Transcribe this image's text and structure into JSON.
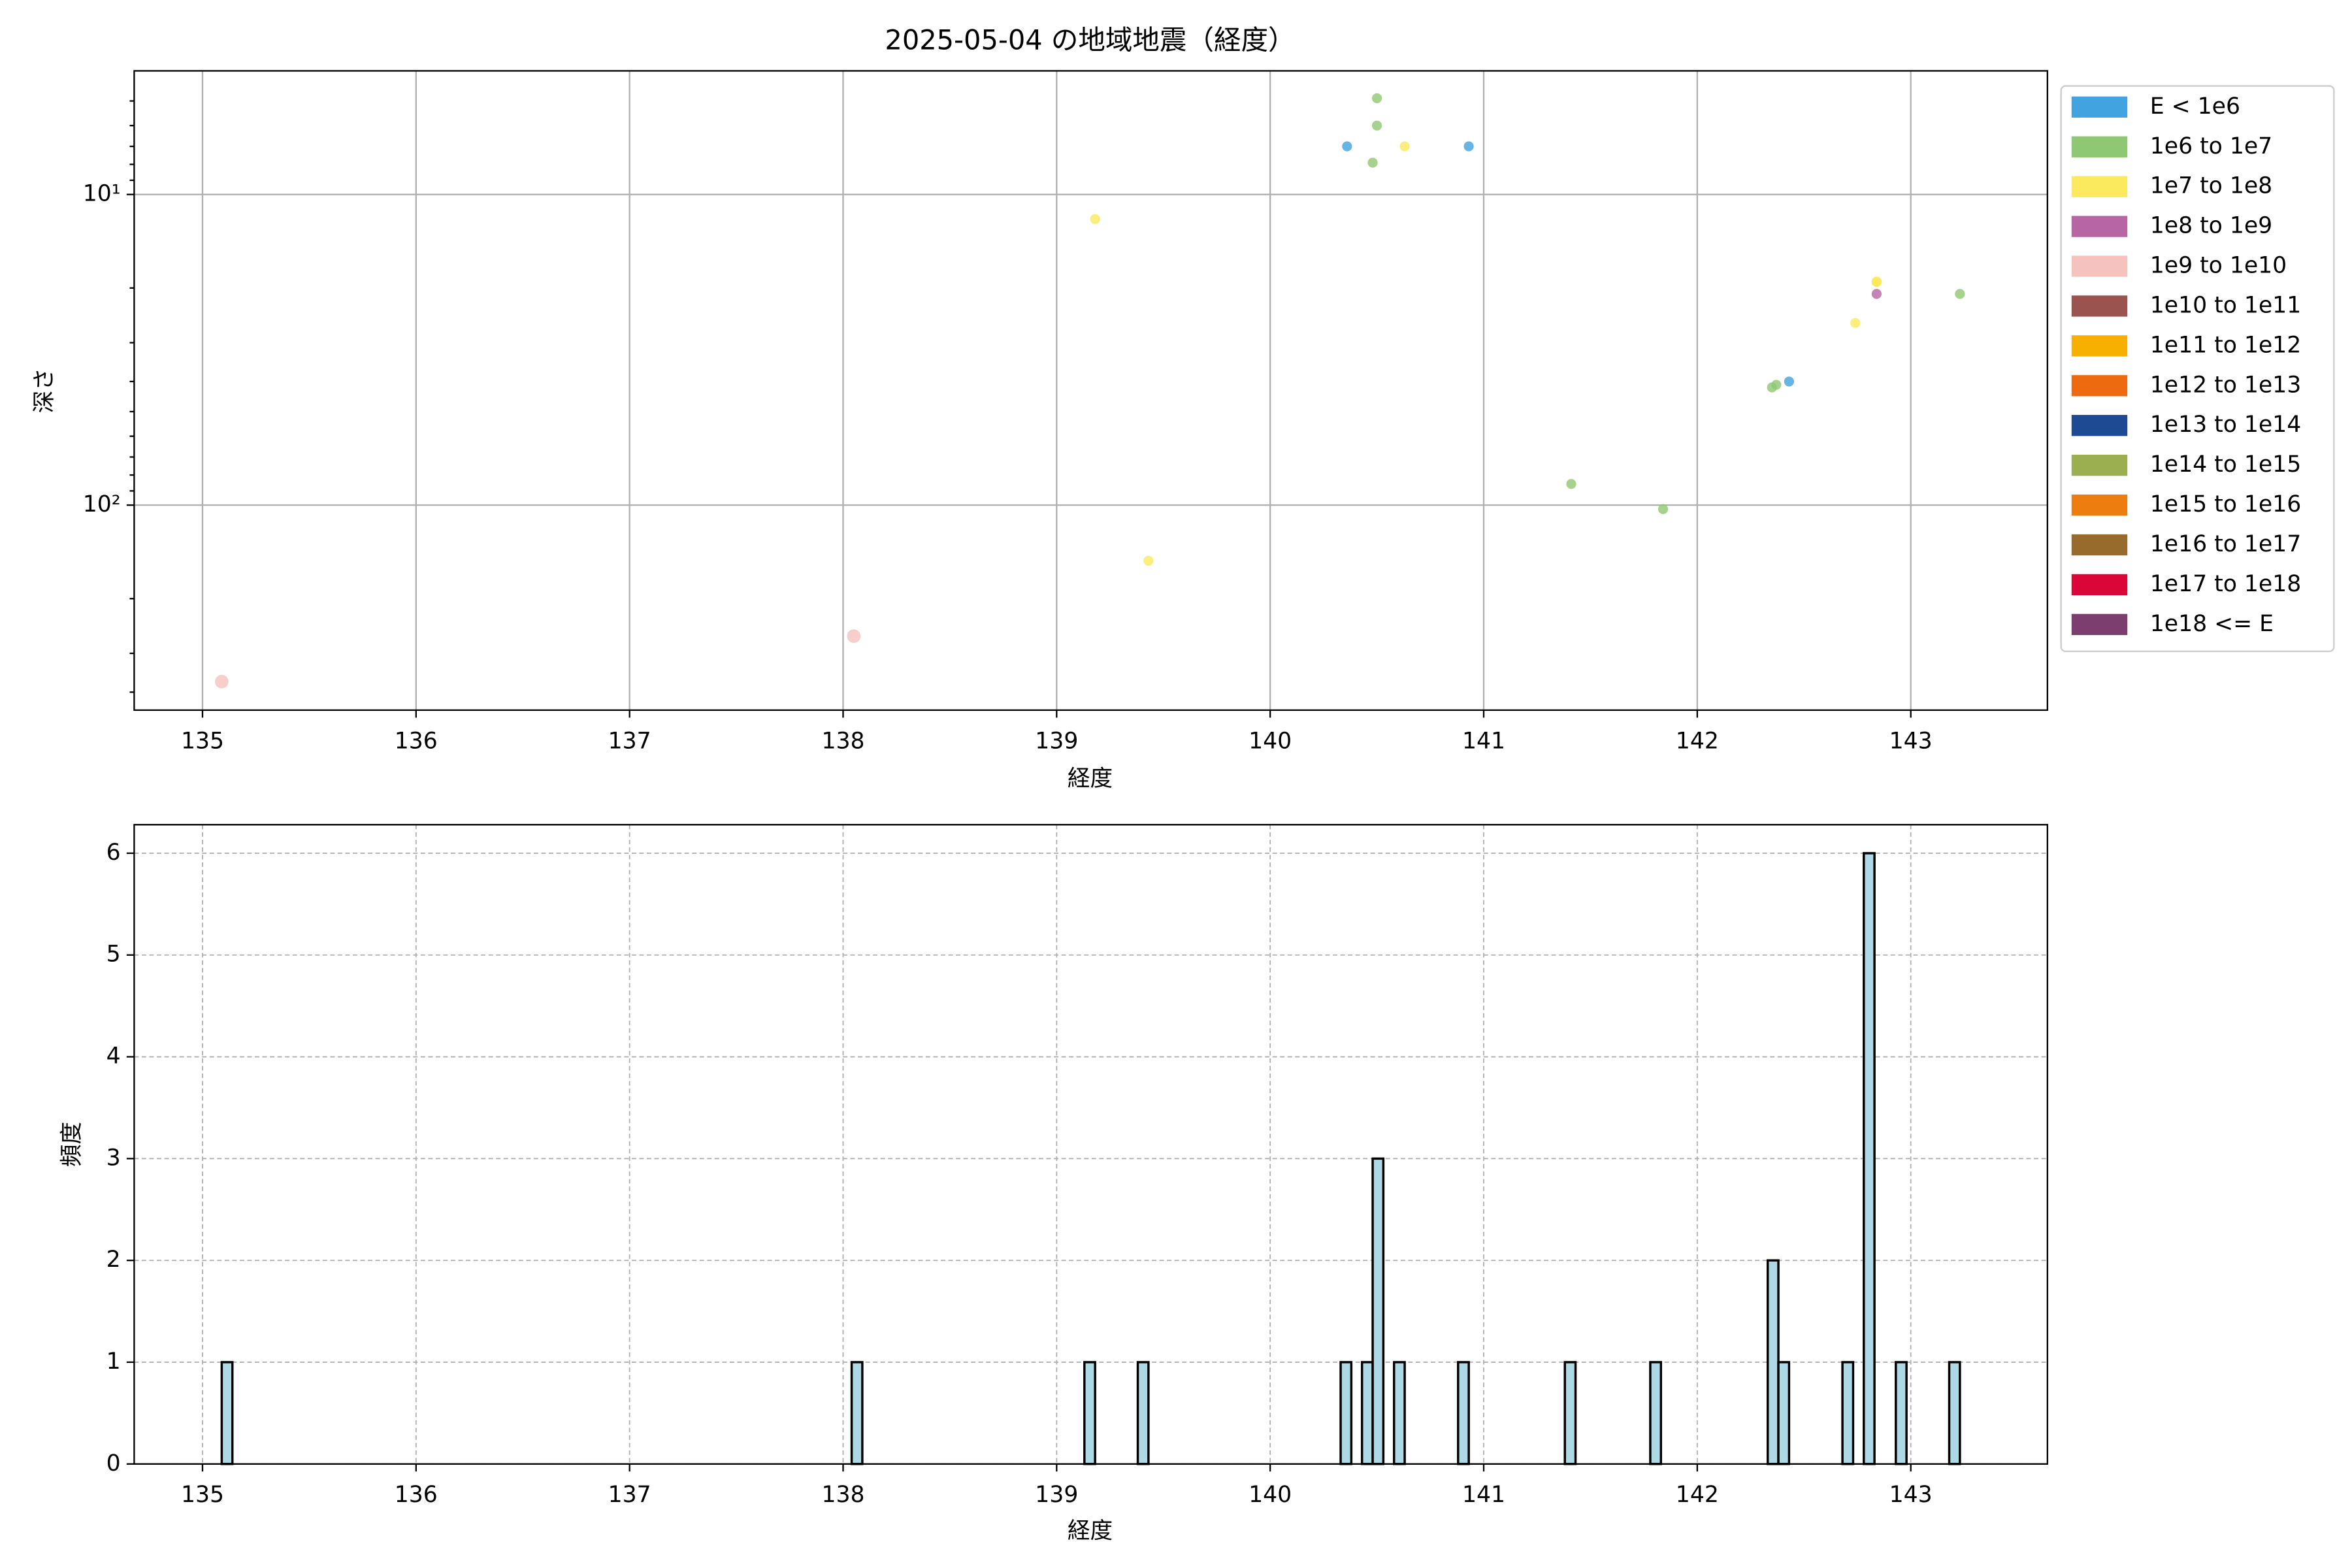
{
  "chart_data": [
    {
      "type": "scatter",
      "title": "2025-05-04 の地域地震（経度）",
      "x_label": "経度",
      "y_label": "深さ",
      "log_y": true,
      "grid": true,
      "legend": "outside right",
      "xlim": [
        134.68,
        143.64
      ],
      "ylim": [
        457,
        4
      ],
      "xticks": [
        135,
        136,
        137,
        138,
        139,
        140,
        141,
        142,
        143
      ],
      "yticks": [
        {
          "value": 10,
          "label": "10¹"
        },
        {
          "value": 100,
          "label": "10²"
        }
      ],
      "yminorticks": [
        5,
        6,
        7,
        8,
        9,
        20,
        30,
        40,
        50,
        60,
        70,
        80,
        90,
        200,
        300,
        400
      ],
      "series": [
        {
          "name": "E < 1e6",
          "color": "#41a3df",
          "x": [
            140.36,
            140.93,
            142.43
          ],
          "values": [
            7.0,
            7.0,
            40
          ]
        },
        {
          "name": "1e6 to 1e7",
          "color": "#8fc872",
          "x": [
            140.48,
            140.5,
            140.5,
            141.41,
            141.84,
            142.35,
            142.37,
            143.23
          ],
          "values": [
            7.9,
            6.0,
            4.9,
            85.5,
            103,
            41.8,
            41,
            20.9
          ]
        },
        {
          "name": "1e7 to 1e8",
          "color": "#fbea5d",
          "x": [
            139.18,
            139.43,
            140.63,
            142.74,
            142.84,
            142.84,
            142.84,
            142.84
          ],
          "values": [
            12.0,
            151,
            7.0,
            25.9,
            19.1,
            19.1,
            19.1,
            19.1
          ]
        },
        {
          "name": "1e8 to 1e9",
          "color": "#b865a4",
          "x": [
            142.84
          ],
          "values": [
            20.9
          ]
        },
        {
          "name": "1e9 to 1e10",
          "color": "#f5c2bd",
          "x": [
            135.09,
            138.05
          ],
          "values": [
            370,
            264
          ]
        },
        {
          "name": "1e10 to 1e11",
          "color": "#9a534e",
          "x": [],
          "values": []
        },
        {
          "name": "1e11 to 1e12",
          "color": "#f7b000",
          "x": [],
          "values": []
        },
        {
          "name": "1e12 to 1e13",
          "color": "#ee6a0f",
          "x": [],
          "values": []
        },
        {
          "name": "1e13 to 1e14",
          "color": "#1d4a92",
          "x": [],
          "values": []
        },
        {
          "name": "1e14 to 1e15",
          "color": "#9caf50",
          "x": [],
          "values": []
        },
        {
          "name": "1e15 to 1e16",
          "color": "#ed7d0e",
          "x": [],
          "values": []
        },
        {
          "name": "1e16 to 1e17",
          "color": "#976b2c",
          "x": [],
          "values": []
        },
        {
          "name": "1e17 to 1e18",
          "color": "#dc0538",
          "x": [],
          "values": []
        },
        {
          "name": "1e18 <= E",
          "color": "#7b3e6f",
          "x": [],
          "values": []
        }
      ]
    },
    {
      "type": "histogram",
      "x_label": "経度",
      "y_label": "頻度",
      "grid": true,
      "color": "#add8e6",
      "xlim": [
        134.68,
        143.64
      ],
      "ylim": [
        0,
        6.28
      ],
      "xticks": [
        135,
        136,
        137,
        138,
        139,
        140,
        141,
        142,
        143
      ],
      "yticks": [
        0,
        1,
        2,
        3,
        4,
        5,
        6
      ],
      "bins": [
        135.09,
        135.14,
        138.04,
        138.09,
        139.13,
        139.18,
        139.38,
        139.43,
        140.33,
        140.38,
        140.43,
        140.48,
        140.53,
        140.58,
        140.63,
        140.88,
        140.93,
        141.38,
        141.43,
        141.78,
        141.83,
        142.33,
        142.38,
        142.43,
        142.68,
        142.73,
        142.78,
        142.83,
        142.93,
        142.98,
        143.18,
        143.23
      ],
      "values": [
        1,
        0,
        1,
        0,
        1,
        0,
        1,
        0,
        1,
        0,
        1,
        3,
        0,
        1,
        0,
        1,
        0,
        1,
        0,
        1,
        0,
        2,
        1,
        0,
        1,
        0,
        6,
        0,
        1,
        0,
        1
      ]
    }
  ]
}
